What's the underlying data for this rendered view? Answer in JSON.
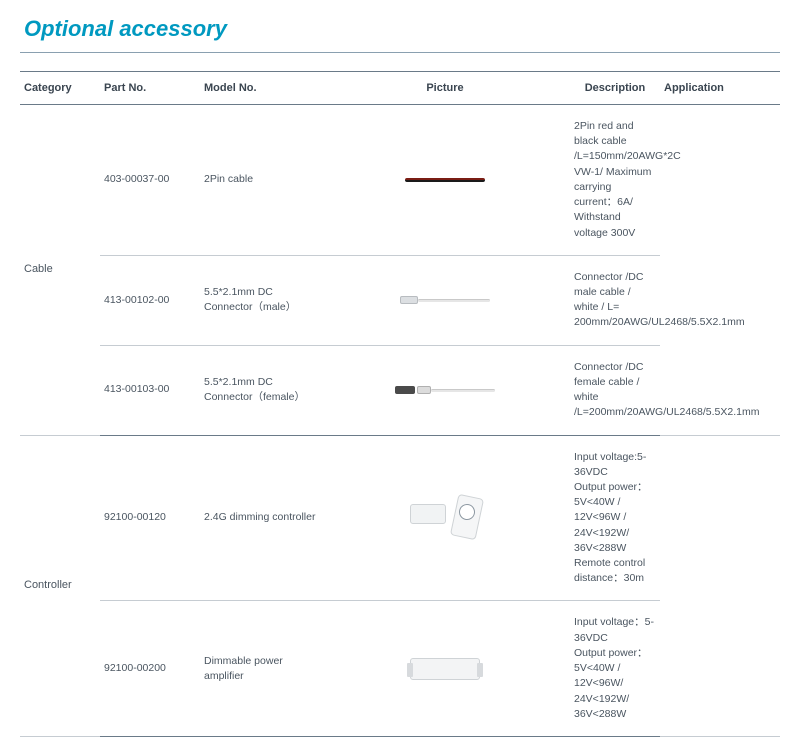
{
  "title": "Optional accessory",
  "columns": {
    "category": "Category",
    "part": "Part No.",
    "model": "Model No.",
    "picture": "Picture",
    "description": "Description",
    "application": "Application"
  },
  "groups": [
    {
      "category": "Cable",
      "rows": [
        {
          "part": "403-00037-00",
          "model": "2Pin cable",
          "picture_kind": "cable-redblack",
          "description": "2Pin red and black cable /L=150mm/20AWG*2C VW-1/ Maximum carrying current：6A/ Withstand voltage 300V",
          "application": ""
        },
        {
          "part": "413-00102-00",
          "model": "5.5*2.1mm DC Connector（male）",
          "picture_kind": "dc-male",
          "description": "Connector /DC male cable / white / L= 200mm/20AWG/UL2468/5.5X2.1mm",
          "application": ""
        },
        {
          "part": "413-00103-00",
          "model": "5.5*2.1mm DC Connector（female）",
          "picture_kind": "dc-female",
          "description": "Connector /DC female cable / white /L=200mm/20AWG/UL2468/5.5X2.1mm",
          "application": ""
        }
      ]
    },
    {
      "category": "Controller",
      "rows": [
        {
          "part": "92100-00120",
          "model": "2.4G dimming controller",
          "picture_kind": "dimmer",
          "description": "Input voltage:5-36VDC\nOutput power：5V<40W / 12V<96W / 24V<192W/ 36V<288W\nRemote control distance：30m",
          "application": ""
        },
        {
          "part": "92100-00200",
          "model": "Dimmable power amplifier",
          "picture_kind": "amp",
          "description": "Input voltage：5-36VDC\nOutput power：5V<40W / 12V<96W/ 24V<192W/ 36V<288W",
          "application": ""
        }
      ]
    }
  ]
}
